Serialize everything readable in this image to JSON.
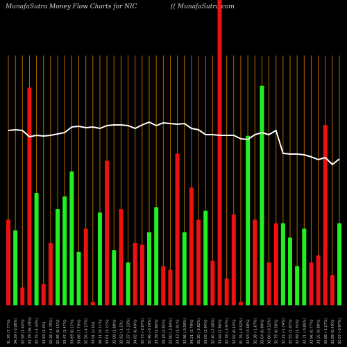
{
  "chart_data": {
    "type": "bar",
    "title": "MunafaSutra  Money Flow  Charts for NIC",
    "site": "(( MunafaSutra.com",
    "colors": {
      "background": "#000000",
      "up": "#22ee22",
      "down": "#ee1111",
      "vline": "#b86a00",
      "line": "#ffffff"
    },
    "grid": false,
    "categories": [
      "31.76 (7.77%)",
      "34.29 (-3.00%)",
      "32.58 (1.63%)",
      "33.78 (16.28%)",
      "32.75 (-4.33%)",
      "33.93 (1.0%)",
      "32.26 (-4.75%)",
      "32.96 (0.15%)",
      "33.47 (1.47%)",
      "33.69 (0.12%)",
      "33.86 (7.79%)",
      "32.56 (-4.17%)",
      "33.91 (2.6%)",
      "34.11 (4.11%)",
      "33.61 (1.21%)",
      "35.09 (1.88%)",
      "32.93 (-1.5%)",
      "32.37 (-5.33%)",
      "34.05 (6.40%)",
      "32.73 (-3.87%)",
      "32.46 (-0.14%)",
      "33.39 (2.86%)",
      "34.18 (2.85%)",
      "32.80 (-3.84%)",
      "33.13 (1.01%)",
      "32.96 (-0.50%)",
      "34.21 (3.79%)",
      "35.30 (-3.82%)",
      "33.05 (1.94%)",
      "32.40 (-2.00%)",
      "33.44 (2.86%)",
      "32.78 (-3.97%)",
      "32.92 (0.43%)",
      "31.76 (-3.52%)",
      "32.93 (3.68%)",
      "32.38 (-1.67%)",
      "32.64 (0.80%)",
      "32.60 (-0.12%)",
      "32.79 (0.58%)",
      "32.22 (-1.74%)",
      "32.55 (1.02%)",
      "32.99 (1.35%)",
      "32.71 (-0.85%)",
      "32.96 (0.77%)",
      "33.25 (0.88%)",
      "32.86 (-1.17%)",
      "32.99 (0.40%)",
      "32.67 (-0.97%)"
    ],
    "series": [
      {
        "direction": [
          "down",
          "up",
          "down",
          "down",
          "up",
          "down",
          "down",
          "up",
          "up",
          "up",
          "up",
          "down",
          "down",
          "up",
          "down",
          "up",
          "down",
          "up",
          "down",
          "down",
          "up",
          "up",
          "down",
          "down",
          "down",
          "up",
          "down",
          "down",
          "up",
          "down",
          "down",
          "down",
          "down",
          "down",
          "up",
          "down",
          "up",
          "down",
          "down",
          "up",
          "up",
          "up",
          "up",
          "down",
          "down",
          "down",
          "down",
          "up"
        ],
        "values": [
          48,
          42,
          10,
          122,
          63,
          12,
          35,
          54,
          61,
          75,
          30,
          43,
          2,
          52,
          81,
          31,
          54,
          24,
          35,
          34,
          41,
          55,
          22,
          20,
          85,
          41,
          66,
          48,
          53,
          25,
          85,
          15,
          51,
          2,
          95,
          48,
          123,
          24,
          46,
          46,
          38,
          22,
          43,
          24,
          28,
          101,
          17,
          46
        ],
        "note": "bar heights, relative money flow volume"
      },
      {
        "line": [
          180,
          181,
          180,
          171,
          173,
          172,
          173,
          175,
          177,
          185,
          186,
          184,
          185,
          183,
          187,
          188,
          188,
          187,
          183,
          188,
          192,
          187,
          191,
          190,
          189,
          190,
          183,
          181,
          174,
          174,
          173,
          173,
          173,
          168,
          167,
          174,
          177,
          174,
          180,
          147,
          146,
          146,
          145,
          142,
          138,
          141,
          131,
          139
        ]
      }
    ],
    "ylim": [
      0,
      140
    ]
  }
}
